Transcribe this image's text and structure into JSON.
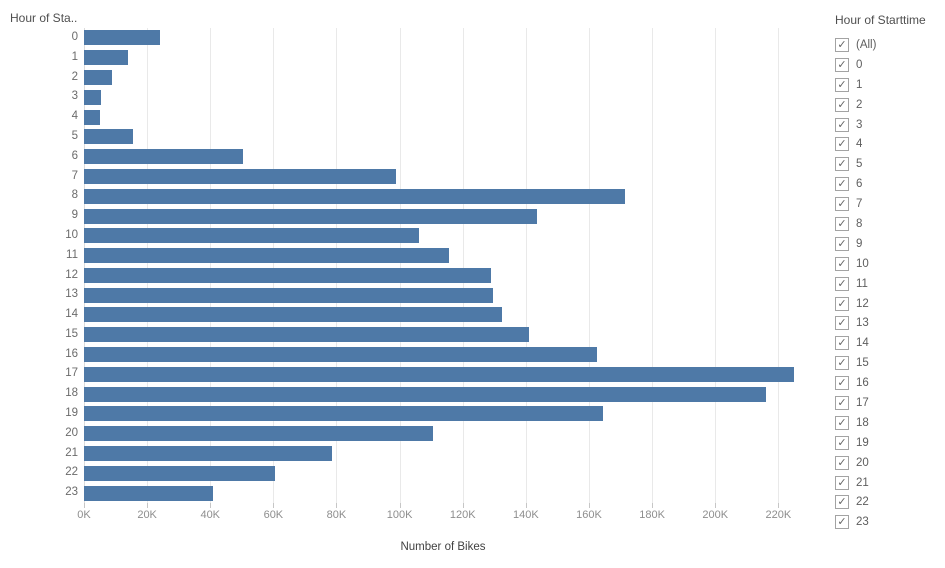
{
  "chart": {
    "row_header_title": "Hour of Sta..",
    "x_axis_title": "Number of Bikes"
  },
  "chart_data": {
    "type": "bar",
    "orientation": "horizontal",
    "title": "Hour of Sta..",
    "xlabel": "Number of Bikes",
    "ylabel": "Hour of Starttime",
    "categories": [
      "0",
      "1",
      "2",
      "3",
      "4",
      "5",
      "6",
      "7",
      "8",
      "9",
      "10",
      "11",
      "12",
      "13",
      "14",
      "15",
      "16",
      "17",
      "18",
      "19",
      "20",
      "21",
      "22",
      "23"
    ],
    "values": [
      24000,
      14000,
      9000,
      5500,
      5000,
      15500,
      50500,
      99000,
      171500,
      143500,
      106000,
      115500,
      129000,
      129500,
      132500,
      141000,
      162500,
      225000,
      216000,
      164500,
      110500,
      78500,
      60500,
      41000
    ],
    "xlim": [
      0,
      227500
    ],
    "x_ticks": [
      {
        "value": 0,
        "label": "0K"
      },
      {
        "value": 20000,
        "label": "20K"
      },
      {
        "value": 40000,
        "label": "40K"
      },
      {
        "value": 60000,
        "label": "60K"
      },
      {
        "value": 80000,
        "label": "80K"
      },
      {
        "value": 100000,
        "label": "100K"
      },
      {
        "value": 120000,
        "label": "120K"
      },
      {
        "value": 140000,
        "label": "140K"
      },
      {
        "value": 160000,
        "label": "160K"
      },
      {
        "value": 180000,
        "label": "180K"
      },
      {
        "value": 200000,
        "label": "200K"
      },
      {
        "value": 220000,
        "label": "220K"
      }
    ],
    "grid": true,
    "legend": false,
    "bar_color": "#4e79a7"
  },
  "filter_panel": {
    "title": "Hour of Starttime",
    "items": [
      {
        "label": "(All)",
        "checked": true
      },
      {
        "label": "0",
        "checked": true
      },
      {
        "label": "1",
        "checked": true
      },
      {
        "label": "2",
        "checked": true
      },
      {
        "label": "3",
        "checked": true
      },
      {
        "label": "4",
        "checked": true
      },
      {
        "label": "5",
        "checked": true
      },
      {
        "label": "6",
        "checked": true
      },
      {
        "label": "7",
        "checked": true
      },
      {
        "label": "8",
        "checked": true
      },
      {
        "label": "9",
        "checked": true
      },
      {
        "label": "10",
        "checked": true
      },
      {
        "label": "11",
        "checked": true
      },
      {
        "label": "12",
        "checked": true
      },
      {
        "label": "13",
        "checked": true
      },
      {
        "label": "14",
        "checked": true
      },
      {
        "label": "15",
        "checked": true
      },
      {
        "label": "16",
        "checked": true
      },
      {
        "label": "17",
        "checked": true
      },
      {
        "label": "18",
        "checked": true
      },
      {
        "label": "19",
        "checked": true
      },
      {
        "label": "20",
        "checked": true
      },
      {
        "label": "21",
        "checked": true
      },
      {
        "label": "22",
        "checked": true
      },
      {
        "label": "23",
        "checked": true
      }
    ],
    "checkmark_glyph": "✓"
  },
  "colors": {
    "bar": "#4e79a7",
    "gridline": "#e9e9e9",
    "tick_label": "#8e8e8e",
    "row_label": "#6b6b6b",
    "title_text": "#4f4f4f"
  }
}
